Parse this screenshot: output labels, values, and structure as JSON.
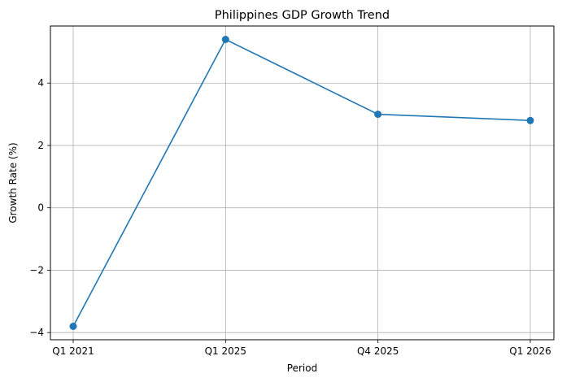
{
  "chart_data": {
    "type": "line",
    "title": "Philippines GDP Growth Trend",
    "xlabel": "Period",
    "ylabel": "Growth Rate (%)",
    "categories": [
      "Q1 2021",
      "Q1 2025",
      "Q4 2025",
      "Q1 2026"
    ],
    "series": [
      {
        "values": [
          -3.8,
          5.4,
          3.0,
          2.8
        ],
        "color": "#1f77b4",
        "marker": "circle"
      }
    ],
    "ylim": [
      -4.23,
      5.83
    ],
    "yticks": [
      -4,
      -2,
      0,
      2,
      4
    ],
    "ytick_labels": [
      "−4",
      "−2",
      "0",
      "2",
      "4"
    ],
    "grid": true,
    "legend": "none"
  }
}
